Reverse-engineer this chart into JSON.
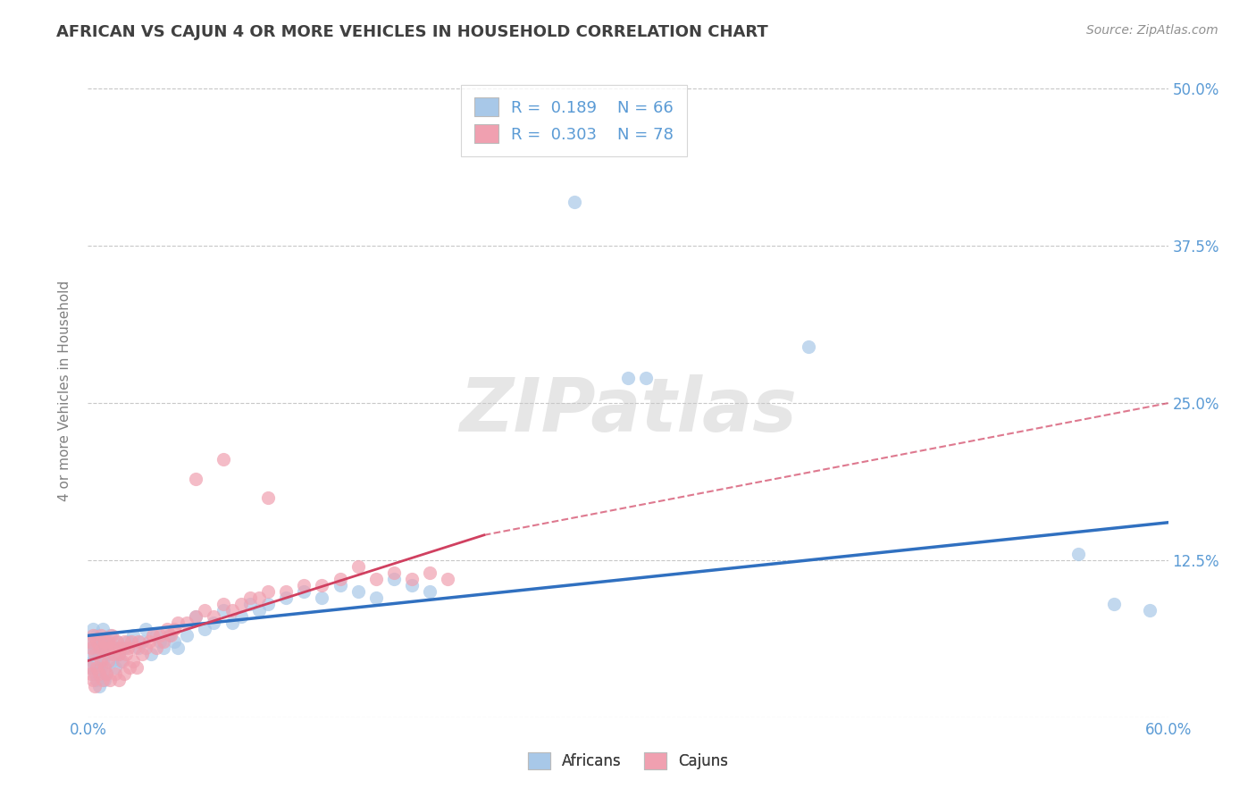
{
  "title": "AFRICAN VS CAJUN 4 OR MORE VEHICLES IN HOUSEHOLD CORRELATION CHART",
  "source": "Source: ZipAtlas.com",
  "ylabel": "4 or more Vehicles in Household",
  "xlim": [
    0.0,
    0.6
  ],
  "ylim": [
    0.0,
    0.52
  ],
  "blue_color": "#A8C8E8",
  "pink_color": "#F0A0B0",
  "blue_line_color": "#3070C0",
  "pink_line_color": "#D04060",
  "title_color": "#404040",
  "axis_label_color": "#808080",
  "tick_label_color": "#5B9BD5",
  "grid_color": "#C8C8C8",
  "blue_scatter": [
    [
      0.001,
      0.06
    ],
    [
      0.002,
      0.05
    ],
    [
      0.002,
      0.04
    ],
    [
      0.003,
      0.07
    ],
    [
      0.003,
      0.045
    ],
    [
      0.004,
      0.055
    ],
    [
      0.004,
      0.035
    ],
    [
      0.005,
      0.065
    ],
    [
      0.005,
      0.03
    ],
    [
      0.006,
      0.05
    ],
    [
      0.006,
      0.025
    ],
    [
      0.007,
      0.06
    ],
    [
      0.007,
      0.04
    ],
    [
      0.008,
      0.07
    ],
    [
      0.008,
      0.045
    ],
    [
      0.009,
      0.055
    ],
    [
      0.009,
      0.03
    ],
    [
      0.01,
      0.06
    ],
    [
      0.01,
      0.035
    ],
    [
      0.011,
      0.05
    ],
    [
      0.012,
      0.065
    ],
    [
      0.013,
      0.045
    ],
    [
      0.014,
      0.055
    ],
    [
      0.015,
      0.04
    ],
    [
      0.016,
      0.06
    ],
    [
      0.017,
      0.05
    ],
    [
      0.018,
      0.045
    ],
    [
      0.02,
      0.055
    ],
    [
      0.022,
      0.06
    ],
    [
      0.025,
      0.065
    ],
    [
      0.028,
      0.055
    ],
    [
      0.03,
      0.06
    ],
    [
      0.032,
      0.07
    ],
    [
      0.035,
      0.05
    ],
    [
      0.038,
      0.065
    ],
    [
      0.04,
      0.06
    ],
    [
      0.042,
      0.055
    ],
    [
      0.045,
      0.065
    ],
    [
      0.048,
      0.06
    ],
    [
      0.05,
      0.055
    ],
    [
      0.055,
      0.065
    ],
    [
      0.06,
      0.08
    ],
    [
      0.065,
      0.07
    ],
    [
      0.07,
      0.075
    ],
    [
      0.075,
      0.085
    ],
    [
      0.08,
      0.075
    ],
    [
      0.085,
      0.08
    ],
    [
      0.09,
      0.09
    ],
    [
      0.095,
      0.085
    ],
    [
      0.1,
      0.09
    ],
    [
      0.11,
      0.095
    ],
    [
      0.12,
      0.1
    ],
    [
      0.13,
      0.095
    ],
    [
      0.14,
      0.105
    ],
    [
      0.15,
      0.1
    ],
    [
      0.16,
      0.095
    ],
    [
      0.17,
      0.11
    ],
    [
      0.18,
      0.105
    ],
    [
      0.19,
      0.1
    ],
    [
      0.27,
      0.41
    ],
    [
      0.3,
      0.27
    ],
    [
      0.31,
      0.27
    ],
    [
      0.4,
      0.295
    ],
    [
      0.55,
      0.13
    ],
    [
      0.57,
      0.09
    ],
    [
      0.59,
      0.085
    ]
  ],
  "pink_scatter": [
    [
      0.001,
      0.06
    ],
    [
      0.001,
      0.04
    ],
    [
      0.002,
      0.055
    ],
    [
      0.002,
      0.035
    ],
    [
      0.003,
      0.065
    ],
    [
      0.003,
      0.03
    ],
    [
      0.004,
      0.05
    ],
    [
      0.004,
      0.025
    ],
    [
      0.005,
      0.06
    ],
    [
      0.005,
      0.04
    ],
    [
      0.006,
      0.055
    ],
    [
      0.006,
      0.035
    ],
    [
      0.007,
      0.065
    ],
    [
      0.007,
      0.045
    ],
    [
      0.008,
      0.055
    ],
    [
      0.008,
      0.03
    ],
    [
      0.009,
      0.06
    ],
    [
      0.009,
      0.04
    ],
    [
      0.01,
      0.055
    ],
    [
      0.01,
      0.035
    ],
    [
      0.011,
      0.06
    ],
    [
      0.011,
      0.045
    ],
    [
      0.012,
      0.055
    ],
    [
      0.012,
      0.03
    ],
    [
      0.013,
      0.065
    ],
    [
      0.014,
      0.05
    ],
    [
      0.015,
      0.055
    ],
    [
      0.015,
      0.035
    ],
    [
      0.016,
      0.06
    ],
    [
      0.017,
      0.05
    ],
    [
      0.017,
      0.03
    ],
    [
      0.018,
      0.055
    ],
    [
      0.019,
      0.045
    ],
    [
      0.02,
      0.06
    ],
    [
      0.02,
      0.035
    ],
    [
      0.021,
      0.05
    ],
    [
      0.022,
      0.055
    ],
    [
      0.023,
      0.04
    ],
    [
      0.024,
      0.06
    ],
    [
      0.025,
      0.045
    ],
    [
      0.026,
      0.055
    ],
    [
      0.027,
      0.04
    ],
    [
      0.028,
      0.06
    ],
    [
      0.03,
      0.05
    ],
    [
      0.032,
      0.055
    ],
    [
      0.034,
      0.06
    ],
    [
      0.036,
      0.065
    ],
    [
      0.038,
      0.055
    ],
    [
      0.04,
      0.065
    ],
    [
      0.042,
      0.06
    ],
    [
      0.044,
      0.07
    ],
    [
      0.046,
      0.065
    ],
    [
      0.048,
      0.07
    ],
    [
      0.05,
      0.075
    ],
    [
      0.055,
      0.075
    ],
    [
      0.06,
      0.08
    ],
    [
      0.065,
      0.085
    ],
    [
      0.07,
      0.08
    ],
    [
      0.075,
      0.09
    ],
    [
      0.08,
      0.085
    ],
    [
      0.085,
      0.09
    ],
    [
      0.09,
      0.095
    ],
    [
      0.095,
      0.095
    ],
    [
      0.1,
      0.1
    ],
    [
      0.11,
      0.1
    ],
    [
      0.12,
      0.105
    ],
    [
      0.13,
      0.105
    ],
    [
      0.14,
      0.11
    ],
    [
      0.06,
      0.19
    ],
    [
      0.075,
      0.205
    ],
    [
      0.1,
      0.175
    ],
    [
      0.15,
      0.12
    ],
    [
      0.16,
      0.11
    ],
    [
      0.17,
      0.115
    ],
    [
      0.18,
      0.11
    ],
    [
      0.19,
      0.115
    ],
    [
      0.2,
      0.11
    ]
  ],
  "blue_line": {
    "x0": 0.0,
    "x1": 0.6,
    "y0": 0.065,
    "y1": 0.155
  },
  "pink_line_solid": {
    "x0": 0.0,
    "x1": 0.22,
    "y0": 0.045,
    "y1": 0.145
  },
  "pink_line_dashed": {
    "x0": 0.22,
    "x1": 0.6,
    "y0": 0.145,
    "y1": 0.25
  }
}
